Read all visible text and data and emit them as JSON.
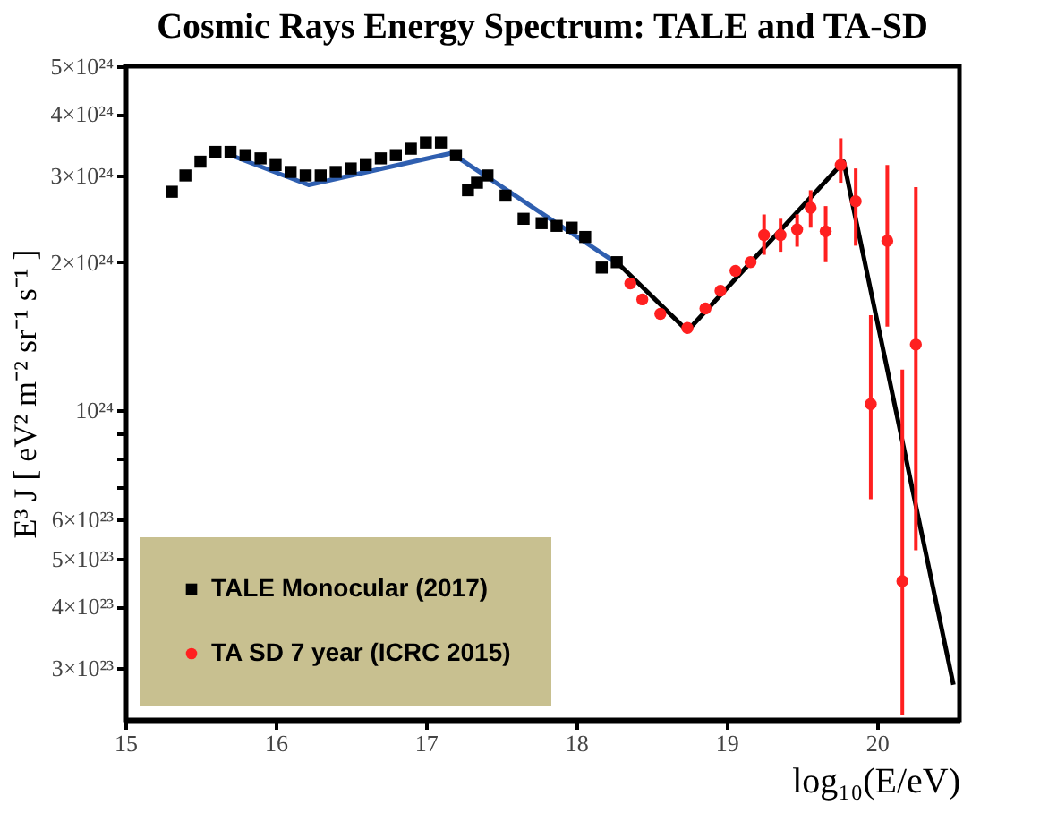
{
  "chart_data": {
    "type": "scatter",
    "title": "Cosmic Rays Energy Spectrum: TALE and TA-SD",
    "xlabel": "log₁₀(E/eV)",
    "ylabel": "E³ J [ eV² m⁻² sr⁻¹ s⁻¹ ]",
    "xlim": [
      15,
      20.55
    ],
    "xticks": [
      15,
      16,
      17,
      18,
      19,
      20
    ],
    "ylim": [
      2.35e+23,
      5e+24
    ],
    "log": "y",
    "yticks": [
      {
        "value": 3e+23,
        "label": "3×10²³"
      },
      {
        "value": 4e+23,
        "label": "4×10²³"
      },
      {
        "value": 5e+23,
        "label": "5×10²³"
      },
      {
        "value": 6e+23,
        "label": "6×10²³"
      },
      {
        "value": 7e+23,
        "label": null
      },
      {
        "value": 8e+23,
        "label": null
      },
      {
        "value": 9e+23,
        "label": null
      },
      {
        "value": 1e+24,
        "label": "10²⁴"
      },
      {
        "value": 2e+24,
        "label": "2×10²⁴"
      },
      {
        "value": 3e+24,
        "label": "3×10²⁴"
      },
      {
        "value": 4e+24,
        "label": "4×10²⁴"
      },
      {
        "value": 5e+24,
        "label": "5×10²⁴"
      }
    ],
    "grid": false,
    "legend": "bottom left",
    "series": [
      {
        "name": "TALE Monocular (2017)",
        "marker": "square",
        "color": "#000000",
        "x": [
          15.31,
          15.4,
          15.5,
          15.6,
          15.7,
          15.8,
          15.9,
          16.0,
          16.1,
          16.2,
          16.3,
          16.4,
          16.5,
          16.6,
          16.7,
          16.8,
          16.9,
          17.0,
          17.1,
          17.2,
          17.28,
          17.34,
          17.41,
          17.53,
          17.65,
          17.77,
          17.87,
          17.97,
          18.06,
          18.17,
          18.27
        ],
        "values": [
          2.78e+24,
          3e+24,
          3.2e+24,
          3.35e+24,
          3.35e+24,
          3.3e+24,
          3.25e+24,
          3.15e+24,
          3.05e+24,
          3e+24,
          3e+24,
          3.05e+24,
          3.1e+24,
          3.15e+24,
          3.25e+24,
          3.3e+24,
          3.4e+24,
          3.5e+24,
          3.5e+24,
          3.3e+24,
          2.8e+24,
          2.9e+24,
          3e+24,
          2.73e+24,
          2.45e+24,
          2.4e+24,
          2.37e+24,
          2.35e+24,
          2.25e+24,
          1.95e+24,
          2e+24
        ]
      },
      {
        "name": "TA SD 7 year (ICRC 2015)",
        "marker": "circle",
        "color": "#ff2020",
        "x": [
          18.36,
          18.44,
          18.56,
          18.74,
          18.86,
          18.96,
          19.06,
          19.16,
          19.25,
          19.36,
          19.47,
          19.56,
          19.66,
          19.76,
          19.86,
          19.96,
          20.07,
          20.17,
          20.26
        ],
        "values": [
          1.81e+24,
          1.68e+24,
          1.57e+24,
          1.47e+24,
          1.61e+24,
          1.75e+24,
          1.92e+24,
          2e+24,
          2.27e+24,
          2.27e+24,
          2.33e+24,
          2.58e+24,
          2.31e+24,
          3.15e+24,
          2.66e+24,
          1.03e+24,
          2.21e+24,
          4.5e+23,
          1.36e+24
        ],
        "errors": [
          null,
          null,
          null,
          null,
          null,
          null,
          null,
          null,
          [
            2.07e+24,
            2.5e+24
          ],
          [
            2.1e+24,
            2.45e+24
          ],
          [
            2.15e+24,
            2.5e+24
          ],
          [
            2.35e+24,
            2.8e+24
          ],
          [
            2e+24,
            2.6e+24
          ],
          [
            2.9e+24,
            3.57e+24
          ],
          [
            2.16e+24,
            3.1e+24
          ],
          [
            6.6e+23,
            1.56e+24
          ],
          [
            1.48e+24,
            3.15e+24
          ],
          [
            2.4e+23,
            1.21e+24
          ],
          [
            5.2e+23,
            2.84e+24
          ]
        ]
      },
      {
        "type": "line",
        "line_style": "solid",
        "color": "#2f5fb0",
        "x": [
          15.69,
          16.22,
          17.17,
          18.27
        ],
        "values": [
          3.31e+24,
          2.87e+24,
          3.33e+24,
          1.99e+24
        ]
      },
      {
        "type": "line",
        "line_style": "solid",
        "color": "#000000",
        "x": [
          18.27,
          18.74,
          19.78,
          20.51
        ],
        "values": [
          2e+24,
          1.45e+24,
          3.2e+24,
          2.77e+23
        ]
      }
    ]
  }
}
